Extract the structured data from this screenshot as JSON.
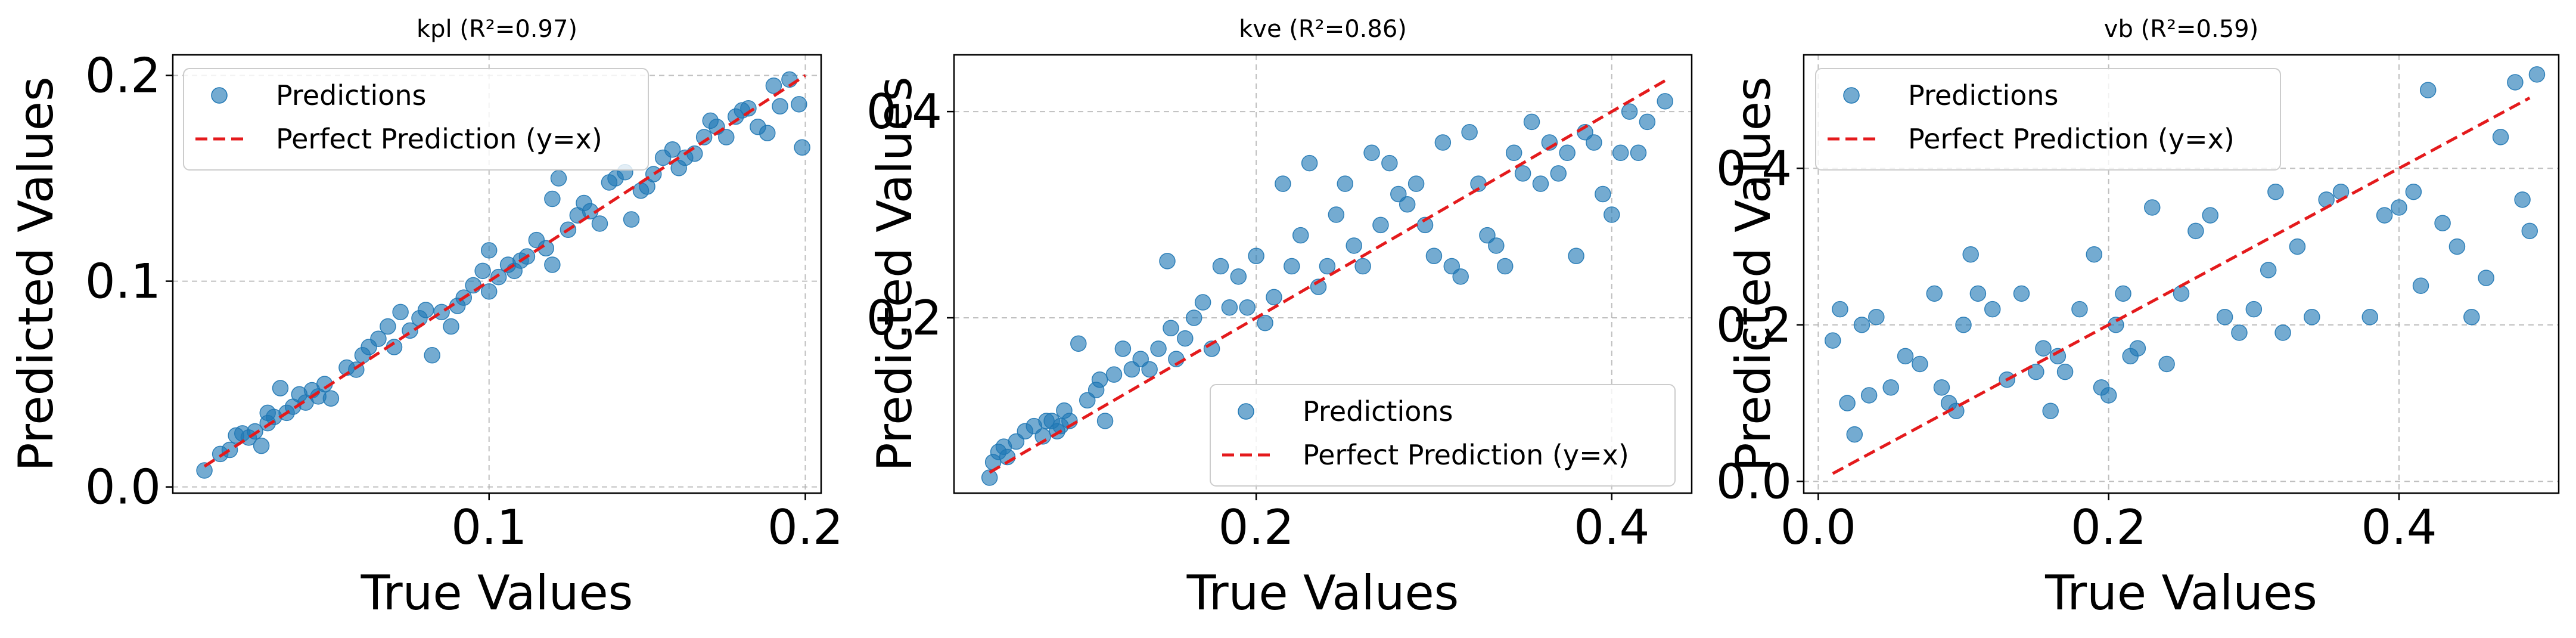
{
  "figure": {
    "colors": {
      "points": "#1f77b4",
      "reference_line": "#e41a1c",
      "grid": "#b0b0b0",
      "axes": "#000000"
    }
  },
  "chart_data": [
    {
      "type": "scatter",
      "title": "kpl (R²=0.97)",
      "xlabel": "True Values",
      "ylabel": "Predicted Values",
      "xlim": [
        0.0,
        0.205
      ],
      "ylim": [
        -0.003,
        0.21
      ],
      "xticks": [
        0.1,
        0.2
      ],
      "xtick_labels": [
        "0.1",
        "0.2"
      ],
      "yticks": [
        0.0,
        0.1,
        0.2
      ],
      "ytick_labels": [
        "0.0",
        "0.1",
        "0.2"
      ],
      "grid": true,
      "legend_position": "upper-left",
      "legend": {
        "scatter": "Predictions",
        "line": "Perfect Prediction (y=x)"
      },
      "reference_line": {
        "x": [
          0.01,
          0.2
        ],
        "y": [
          0.01,
          0.2
        ]
      },
      "series": [
        {
          "name": "Predictions",
          "x": [
            0.01,
            0.015,
            0.018,
            0.02,
            0.022,
            0.024,
            0.026,
            0.028,
            0.03,
            0.03,
            0.032,
            0.034,
            0.036,
            0.038,
            0.04,
            0.042,
            0.044,
            0.046,
            0.048,
            0.05,
            0.055,
            0.058,
            0.06,
            0.062,
            0.065,
            0.068,
            0.07,
            0.072,
            0.075,
            0.078,
            0.08,
            0.082,
            0.085,
            0.088,
            0.09,
            0.092,
            0.095,
            0.098,
            0.1,
            0.1,
            0.103,
            0.106,
            0.108,
            0.11,
            0.112,
            0.115,
            0.118,
            0.12,
            0.12,
            0.122,
            0.125,
            0.128,
            0.13,
            0.132,
            0.135,
            0.138,
            0.14,
            0.143,
            0.145,
            0.148,
            0.15,
            0.152,
            0.155,
            0.158,
            0.16,
            0.162,
            0.165,
            0.168,
            0.17,
            0.172,
            0.175,
            0.178,
            0.18,
            0.182,
            0.185,
            0.188,
            0.19,
            0.192,
            0.195,
            0.198,
            0.199
          ],
          "y": [
            0.008,
            0.016,
            0.018,
            0.025,
            0.026,
            0.024,
            0.027,
            0.02,
            0.031,
            0.036,
            0.034,
            0.048,
            0.036,
            0.039,
            0.045,
            0.041,
            0.047,
            0.044,
            0.05,
            0.043,
            0.058,
            0.057,
            0.064,
            0.068,
            0.072,
            0.078,
            0.068,
            0.085,
            0.076,
            0.082,
            0.086,
            0.064,
            0.085,
            0.078,
            0.088,
            0.092,
            0.098,
            0.105,
            0.115,
            0.095,
            0.102,
            0.108,
            0.105,
            0.11,
            0.112,
            0.12,
            0.116,
            0.14,
            0.108,
            0.15,
            0.125,
            0.132,
            0.138,
            0.134,
            0.128,
            0.148,
            0.15,
            0.153,
            0.13,
            0.144,
            0.146,
            0.152,
            0.16,
            0.164,
            0.155,
            0.16,
            0.162,
            0.17,
            0.178,
            0.175,
            0.17,
            0.18,
            0.183,
            0.184,
            0.175,
            0.172,
            0.195,
            0.185,
            0.198,
            0.186,
            0.165
          ]
        }
      ]
    },
    {
      "type": "scatter",
      "title": "kve (R²=0.86)",
      "xlabel": "True Values",
      "ylabel": "Predicted Values",
      "xlim": [
        0.03,
        0.445
      ],
      "ylim": [
        0.03,
        0.455
      ],
      "xticks": [
        0.2,
        0.4
      ],
      "xtick_labels": [
        "0.2",
        "0.4"
      ],
      "yticks": [
        0.2,
        0.4
      ],
      "ytick_labels": [
        "0.2",
        "0.4"
      ],
      "grid": true,
      "legend_position": "lower-right",
      "legend": {
        "scatter": "Predictions",
        "line": "Perfect Prediction (y=x)"
      },
      "reference_line": {
        "x": [
          0.05,
          0.43
        ],
        "y": [
          0.05,
          0.43
        ]
      },
      "series": [
        {
          "name": "Predictions",
          "x": [
            0.05,
            0.052,
            0.055,
            0.058,
            0.06,
            0.065,
            0.07,
            0.075,
            0.08,
            0.082,
            0.085,
            0.088,
            0.09,
            0.092,
            0.095,
            0.1,
            0.105,
            0.11,
            0.112,
            0.115,
            0.12,
            0.125,
            0.13,
            0.135,
            0.14,
            0.145,
            0.15,
            0.152,
            0.155,
            0.16,
            0.165,
            0.17,
            0.175,
            0.18,
            0.185,
            0.19,
            0.195,
            0.2,
            0.205,
            0.21,
            0.215,
            0.22,
            0.225,
            0.23,
            0.235,
            0.24,
            0.245,
            0.25,
            0.255,
            0.26,
            0.265,
            0.27,
            0.275,
            0.28,
            0.285,
            0.29,
            0.295,
            0.3,
            0.305,
            0.31,
            0.315,
            0.32,
            0.325,
            0.33,
            0.335,
            0.34,
            0.345,
            0.35,
            0.355,
            0.36,
            0.365,
            0.37,
            0.375,
            0.38,
            0.385,
            0.39,
            0.395,
            0.4,
            0.405,
            0.41,
            0.415,
            0.42,
            0.43
          ],
          "y": [
            0.045,
            0.06,
            0.07,
            0.075,
            0.065,
            0.08,
            0.09,
            0.095,
            0.085,
            0.1,
            0.1,
            0.09,
            0.095,
            0.11,
            0.1,
            0.175,
            0.12,
            0.13,
            0.14,
            0.1,
            0.145,
            0.17,
            0.15,
            0.16,
            0.15,
            0.17,
            0.255,
            0.19,
            0.16,
            0.18,
            0.2,
            0.215,
            0.17,
            0.25,
            0.21,
            0.24,
            0.21,
            0.26,
            0.195,
            0.22,
            0.33,
            0.25,
            0.28,
            0.35,
            0.23,
            0.25,
            0.3,
            0.33,
            0.27,
            0.25,
            0.36,
            0.29,
            0.35,
            0.32,
            0.31,
            0.33,
            0.29,
            0.26,
            0.37,
            0.25,
            0.24,
            0.38,
            0.33,
            0.28,
            0.27,
            0.25,
            0.36,
            0.34,
            0.39,
            0.33,
            0.37,
            0.34,
            0.36,
            0.26,
            0.38,
            0.37,
            0.32,
            0.3,
            0.36,
            0.4,
            0.36,
            0.39,
            0.41
          ]
        }
      ]
    },
    {
      "type": "scatter",
      "title": "vb (R²=0.59)",
      "xlabel": "True Values",
      "ylabel": "Predicted Values",
      "xlim": [
        -0.01,
        0.51
      ],
      "ylim": [
        -0.015,
        0.545
      ],
      "xticks": [
        0.0,
        0.2,
        0.4
      ],
      "xtick_labels": [
        "0.0",
        "0.2",
        "0.4"
      ],
      "yticks": [
        0.0,
        0.2,
        0.4
      ],
      "ytick_labels": [
        "0.0",
        "0.2",
        "0.4"
      ],
      "grid": true,
      "legend_position": "upper-left",
      "legend": {
        "scatter": "Predictions",
        "line": "Perfect Prediction (y=x)"
      },
      "reference_line": {
        "x": [
          0.01,
          0.49
        ],
        "y": [
          0.01,
          0.49
        ]
      },
      "series": [
        {
          "name": "Predictions",
          "x": [
            0.01,
            0.015,
            0.02,
            0.025,
            0.03,
            0.035,
            0.04,
            0.05,
            0.06,
            0.07,
            0.08,
            0.085,
            0.09,
            0.095,
            0.1,
            0.105,
            0.11,
            0.12,
            0.13,
            0.14,
            0.15,
            0.155,
            0.16,
            0.165,
            0.17,
            0.18,
            0.19,
            0.195,
            0.2,
            0.205,
            0.21,
            0.215,
            0.22,
            0.23,
            0.24,
            0.25,
            0.26,
            0.27,
            0.28,
            0.29,
            0.3,
            0.31,
            0.315,
            0.32,
            0.33,
            0.34,
            0.35,
            0.36,
            0.38,
            0.39,
            0.4,
            0.41,
            0.415,
            0.42,
            0.43,
            0.44,
            0.45,
            0.46,
            0.47,
            0.48,
            0.485,
            0.49,
            0.495
          ],
          "y": [
            0.18,
            0.22,
            0.1,
            0.06,
            0.2,
            0.11,
            0.21,
            0.12,
            0.16,
            0.15,
            0.24,
            0.12,
            0.1,
            0.09,
            0.2,
            0.29,
            0.24,
            0.22,
            0.13,
            0.24,
            0.14,
            0.17,
            0.09,
            0.16,
            0.14,
            0.22,
            0.29,
            0.12,
            0.11,
            0.2,
            0.24,
            0.16,
            0.17,
            0.35,
            0.15,
            0.24,
            0.32,
            0.34,
            0.21,
            0.19,
            0.22,
            0.27,
            0.37,
            0.19,
            0.3,
            0.21,
            0.36,
            0.37,
            0.21,
            0.34,
            0.35,
            0.37,
            0.25,
            0.5,
            0.33,
            0.3,
            0.21,
            0.26,
            0.44,
            0.51,
            0.36,
            0.32,
            0.52
          ]
        }
      ]
    }
  ]
}
